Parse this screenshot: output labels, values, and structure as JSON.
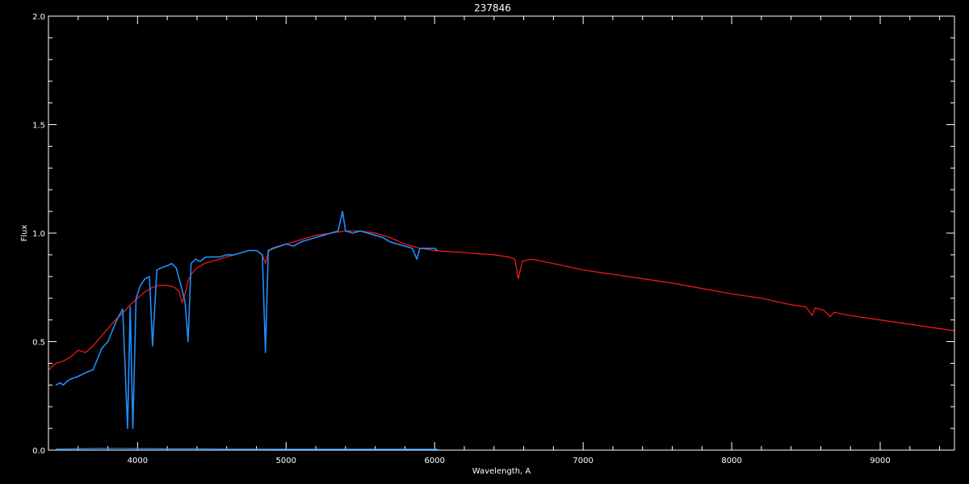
{
  "chart_data": {
    "type": "line",
    "title": "237846",
    "xlabel": "Wavelength, A",
    "ylabel": "Flux",
    "xlim": [
      3400,
      9500
    ],
    "ylim": [
      0.0,
      2.0
    ],
    "xticks": [
      4000,
      5000,
      6000,
      7000,
      8000,
      9000
    ],
    "xtick_labels": [
      "4000",
      "5000",
      "6000",
      "7000",
      "8000",
      "9000"
    ],
    "yticks": [
      0.0,
      0.5,
      1.0,
      1.5,
      2.0
    ],
    "ytick_labels": [
      "0.0",
      "0.5",
      "1.0",
      "1.5",
      "2.0"
    ],
    "grid": false,
    "background": "#000000",
    "axis_color": "#ffffff",
    "series": [
      {
        "color": "#ff1a1a",
        "x": [
          3400,
          3450,
          3500,
          3550,
          3600,
          3650,
          3700,
          3750,
          3800,
          3850,
          3900,
          3950,
          4000,
          4050,
          4100,
          4150,
          4200,
          4250,
          4280,
          4300,
          4320,
          4340,
          4360,
          4400,
          4450,
          4500,
          4550,
          4600,
          4650,
          4700,
          4750,
          4800,
          4840,
          4861,
          4880,
          4900,
          5000,
          5100,
          5200,
          5300,
          5400,
          5500,
          5600,
          5700,
          5800,
          5900,
          6000,
          6100,
          6200,
          6300,
          6400,
          6500,
          6540,
          6563,
          6590,
          6650,
          6800,
          7000,
          7200,
          7400,
          7600,
          7800,
          8000,
          8200,
          8400,
          8500,
          8542,
          8560,
          8620,
          8662,
          8690,
          8800,
          9000,
          9200,
          9400,
          9500
        ],
        "y": [
          0.37,
          0.4,
          0.41,
          0.43,
          0.46,
          0.45,
          0.48,
          0.52,
          0.56,
          0.6,
          0.63,
          0.67,
          0.7,
          0.73,
          0.75,
          0.76,
          0.76,
          0.75,
          0.73,
          0.68,
          0.72,
          0.78,
          0.81,
          0.84,
          0.86,
          0.87,
          0.88,
          0.89,
          0.9,
          0.91,
          0.92,
          0.92,
          0.9,
          0.86,
          0.91,
          0.93,
          0.95,
          0.97,
          0.99,
          1.0,
          1.01,
          1.01,
          1.0,
          0.98,
          0.95,
          0.93,
          0.92,
          0.915,
          0.91,
          0.905,
          0.9,
          0.89,
          0.88,
          0.79,
          0.87,
          0.88,
          0.86,
          0.83,
          0.81,
          0.79,
          0.77,
          0.745,
          0.72,
          0.7,
          0.67,
          0.66,
          0.62,
          0.655,
          0.645,
          0.615,
          0.635,
          0.62,
          0.6,
          0.58,
          0.56,
          0.55
        ]
      },
      {
        "color": "#1e8fff",
        "x": [
          3450,
          3480,
          3500,
          3530,
          3560,
          3600,
          3630,
          3660,
          3700,
          3730,
          3760,
          3800,
          3830,
          3860,
          3900,
          3933,
          3950,
          3968,
          3990,
          4020,
          4050,
          4080,
          4101,
          4130,
          4160,
          4200,
          4230,
          4260,
          4300,
          4320,
          4340,
          4360,
          4390,
          4420,
          4460,
          4500,
          4550,
          4600,
          4650,
          4700,
          4750,
          4800,
          4840,
          4861,
          4880,
          4920,
          4960,
          5000,
          5050,
          5100,
          5150,
          5200,
          5250,
          5300,
          5350,
          5380,
          5400,
          5450,
          5500,
          5550,
          5600,
          5650,
          5700,
          5750,
          5800,
          5850,
          5880,
          5900,
          5950,
          6000,
          6020
        ],
        "y": [
          0.3,
          0.31,
          0.3,
          0.32,
          0.33,
          0.34,
          0.35,
          0.36,
          0.37,
          0.42,
          0.47,
          0.5,
          0.55,
          0.6,
          0.65,
          0.1,
          0.66,
          0.1,
          0.7,
          0.76,
          0.79,
          0.8,
          0.48,
          0.83,
          0.84,
          0.85,
          0.86,
          0.84,
          0.74,
          0.68,
          0.5,
          0.86,
          0.88,
          0.87,
          0.89,
          0.89,
          0.89,
          0.9,
          0.9,
          0.91,
          0.92,
          0.92,
          0.9,
          0.45,
          0.92,
          0.93,
          0.94,
          0.95,
          0.94,
          0.96,
          0.97,
          0.98,
          0.99,
          1.0,
          1.01,
          1.1,
          1.01,
          1.0,
          1.01,
          1.0,
          0.99,
          0.98,
          0.96,
          0.95,
          0.94,
          0.93,
          0.88,
          0.93,
          0.93,
          0.93,
          0.92
        ]
      },
      {
        "color": "#1e8fff",
        "x": [
          3450,
          3600,
          3800,
          4000,
          4200,
          4400,
          4600,
          4800,
          5000,
          5200,
          5400,
          5600,
          5800,
          6020
        ],
        "y": [
          0.005,
          0.006,
          0.008,
          0.007,
          0.006,
          0.006,
          0.005,
          0.005,
          0.004,
          0.004,
          0.004,
          0.004,
          0.004,
          0.004
        ]
      }
    ]
  }
}
